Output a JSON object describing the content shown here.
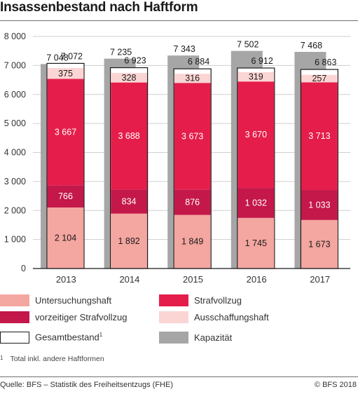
{
  "title": "Insassenbestand nach Haftform",
  "chart_data": {
    "type": "bar",
    "stacked": true,
    "categories": [
      "2013",
      "2014",
      "2015",
      "2016",
      "2017"
    ],
    "series": [
      {
        "name": "Untersuchungshaft",
        "color": "#f4a6a0",
        "values": [
          2104,
          1892,
          1849,
          1745,
          1673
        ]
      },
      {
        "name": "vorzeitiger Strafvollzug",
        "color": "#c4174a",
        "values": [
          766,
          834,
          876,
          1032,
          1033
        ]
      },
      {
        "name": "Strafvollzug",
        "color": "#e51d4a",
        "values": [
          3667,
          3688,
          3673,
          3670,
          3713
        ]
      },
      {
        "name": "Ausschaffungshaft",
        "color": "#fbd5d3",
        "values": [
          375,
          328,
          316,
          319,
          257
        ]
      }
    ],
    "value_labels": {
      "Untersuchungshaft": [
        "2 104",
        "1 892",
        "1 849",
        "1 745",
        "1 673"
      ],
      "vorzeitiger Strafvollzug": [
        "766",
        "834",
        "876",
        "1 032",
        "1 033"
      ],
      "Strafvollzug": [
        "3 667",
        "3 688",
        "3 673",
        "3 670",
        "3 713"
      ],
      "Ausschaffungshaft": [
        "375",
        "328",
        "316",
        "319",
        "257"
      ]
    },
    "gesamtbestand": {
      "name": "Gesamtbestand",
      "values": [
        7072,
        6923,
        6884,
        6912,
        6863
      ],
      "labels": [
        "7 072",
        "6 923",
        "6 884",
        "6 912",
        "6 863"
      ]
    },
    "kapazitaet": {
      "name": "Kapazität",
      "color": "#a6a6a6",
      "values": [
        7048,
        7235,
        7343,
        7502,
        7468
      ],
      "labels": [
        "7 048",
        "7 235",
        "7 343",
        "7 502",
        "7 468"
      ]
    },
    "ylim": [
      0,
      8000
    ],
    "yticks": [
      0,
      1000,
      2000,
      3000,
      4000,
      5000,
      6000,
      7000,
      8000
    ],
    "ytick_labels": [
      "0",
      "1 000",
      "2 000",
      "3 000",
      "4 000",
      "5 000",
      "6 000",
      "7 000",
      "8 000"
    ],
    "grid": true,
    "legend_position": "bottom"
  },
  "legend": {
    "untersuchungshaft": "Untersuchungshaft",
    "strafvollzug": "Strafvollzug",
    "vorzeitiger": "vorzeitiger Strafvollzug",
    "ausschaffungshaft": "Ausschaffungshaft",
    "gesamtbestand": "Gesamtbestand",
    "gesamtbestand_sup": "1",
    "kapazitaet": "Kapazität"
  },
  "footnote": {
    "mark": "1",
    "text": "Total inkl. andere Haftformen"
  },
  "source": "Quelle: BFS – Statistik des Freiheitsentzugs (FHE)",
  "copyright": "© BFS 2018"
}
